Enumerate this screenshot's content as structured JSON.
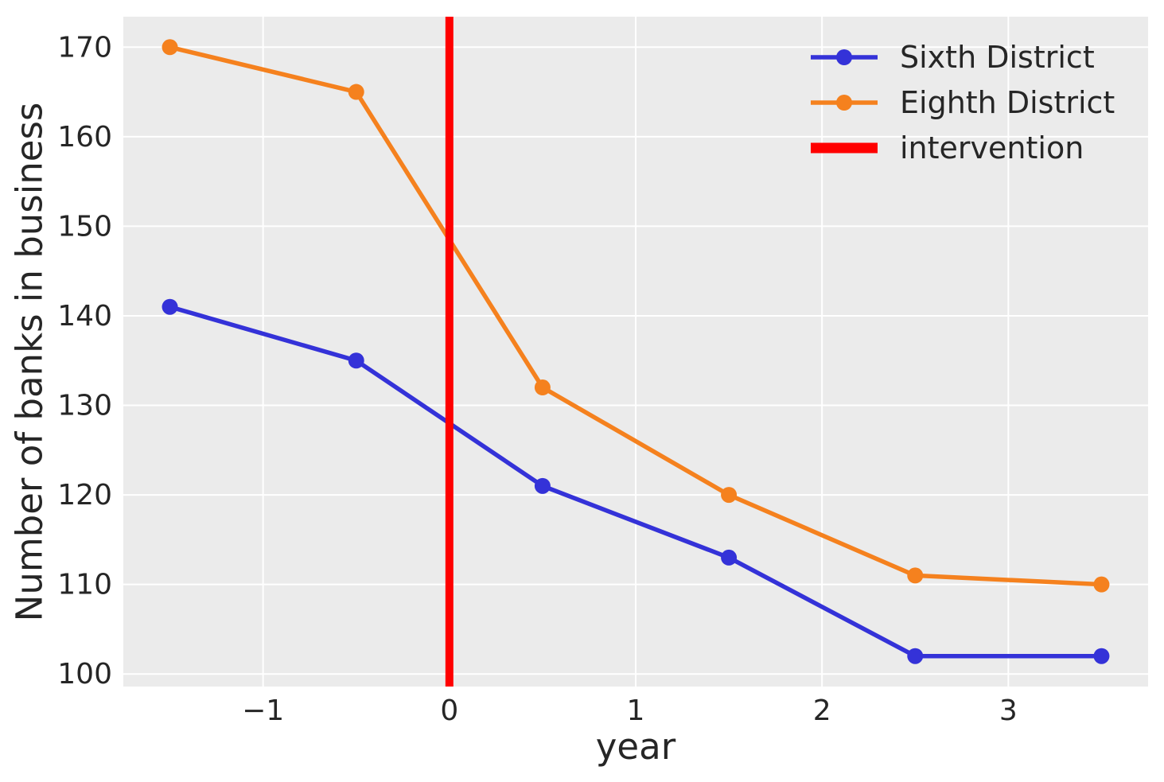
{
  "chart_data": {
    "type": "line",
    "title": "",
    "xlabel": "year",
    "ylabel": "Number of banks in business",
    "x": [
      -1.5,
      -0.5,
      0.5,
      1.5,
      2.5,
      3.5
    ],
    "series": [
      {
        "name": "Sixth District",
        "color": "#3432d8",
        "values": [
          141,
          135,
          121,
          113,
          102,
          102
        ]
      },
      {
        "name": "Eighth District",
        "color": "#f5811e",
        "values": [
          170,
          165,
          132,
          120,
          111,
          110
        ]
      }
    ],
    "intervention_line": {
      "label": "intervention",
      "x": 0,
      "color": "#ff0000"
    },
    "xlim": [
      -1.75,
      3.75
    ],
    "ylim": [
      98.6,
      173.4
    ],
    "xtick_values": [
      -1,
      0,
      1,
      2,
      3
    ],
    "xtick_labels": [
      "−1",
      "0",
      "1",
      "2",
      "3"
    ],
    "ytick_values": [
      100,
      110,
      120,
      130,
      140,
      150,
      160,
      170
    ],
    "ytick_labels": [
      "100",
      "110",
      "120",
      "130",
      "140",
      "150",
      "160",
      "170"
    ],
    "grid": true,
    "legend_position": "upper right",
    "plot_bg": "#ebebeb",
    "grid_color": "#ffffff",
    "text_color": "#262626",
    "fig_bg": "#ffffff"
  }
}
